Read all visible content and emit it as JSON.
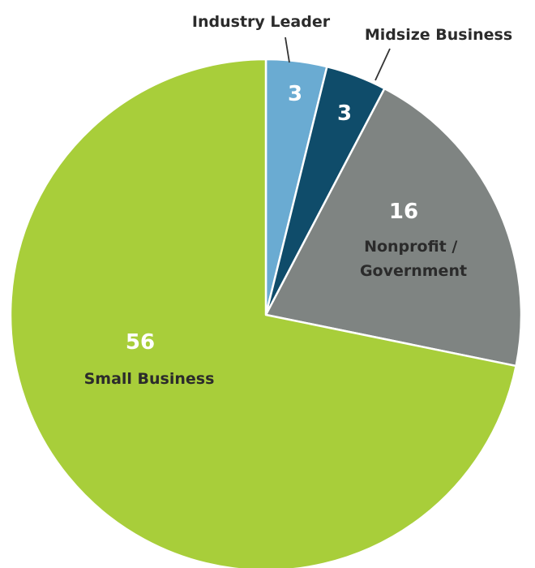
{
  "chart_data": {
    "type": "pie",
    "slices": [
      {
        "label": "Industry Leader",
        "value": 3,
        "color": "#6aabd2"
      },
      {
        "label": "Midsize Business",
        "value": 3,
        "color": "#0f4c6a"
      },
      {
        "label": "Nonprofit / Government",
        "value": 16,
        "color": "#7f8482"
      },
      {
        "label": "Small Business",
        "value": 56,
        "color": "#a8ce3a"
      }
    ],
    "start_angle_deg": 0,
    "direction": "clockwise",
    "value_text_colors": {
      "Industry Leader": "#ffffff",
      "Midsize Business": "#ffffff",
      "Nonprofit / Government": "#ffffff",
      "Small Business": "#ffffff"
    },
    "label_text_color": "#2b2b2b",
    "slice_border_color": "#ffffff"
  }
}
